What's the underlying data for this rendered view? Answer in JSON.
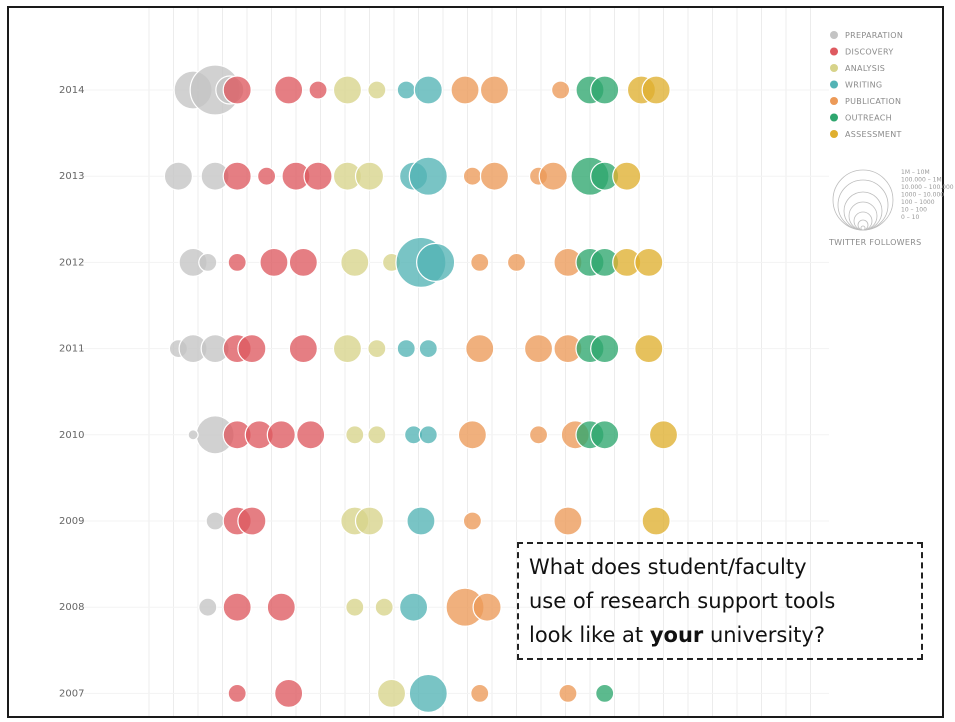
{
  "chart_data": {
    "type": "scatter",
    "title": "",
    "xlabel": "",
    "ylabel": "",
    "y_categories": [
      "2014",
      "2013",
      "2012",
      "2011",
      "2010",
      "2009",
      "2008",
      "2007"
    ],
    "legend": {
      "position": "top-right",
      "entries": [
        {
          "name": "PREPARATION",
          "color": "#c4c4c4"
        },
        {
          "name": "DISCOVERY",
          "color": "#de5a60"
        },
        {
          "name": "ANALYSIS",
          "color": "#d7d38a"
        },
        {
          "name": "WRITING",
          "color": "#53b3b5"
        },
        {
          "name": "PUBLICATION",
          "color": "#ec9a58"
        },
        {
          "name": "OUTREACH",
          "color": "#2ea66e"
        },
        {
          "name": "ASSESSMENT",
          "color": "#dfaf2f"
        }
      ]
    },
    "size_legend": {
      "title": "TWITTER FOLLOWERS",
      "levels": [
        "1M – 10M",
        "100.000 – 1M",
        "10.000 – 100.000",
        "1000 – 10.000",
        "100 – 1000",
        "10 – 100",
        "0 – 10"
      ]
    },
    "series": [
      {
        "name": "PREPARATION",
        "points": [
          {
            "year": 2014,
            "x": 0.06,
            "s": 4
          },
          {
            "year": 2014,
            "x": 0.09,
            "s": 5
          },
          {
            "year": 2014,
            "x": 0.11,
            "s": 3
          },
          {
            "year": 2013,
            "x": 0.04,
            "s": 3
          },
          {
            "year": 2013,
            "x": 0.09,
            "s": 3
          },
          {
            "year": 2012,
            "x": 0.06,
            "s": 3
          },
          {
            "year": 2012,
            "x": 0.08,
            "s": 2
          },
          {
            "year": 2011,
            "x": 0.04,
            "s": 2
          },
          {
            "year": 2011,
            "x": 0.06,
            "s": 3
          },
          {
            "year": 2011,
            "x": 0.09,
            "s": 3
          },
          {
            "year": 2010,
            "x": 0.09,
            "s": 4
          },
          {
            "year": 2010,
            "x": 0.06,
            "s": 1
          },
          {
            "year": 2009,
            "x": 0.09,
            "s": 2
          },
          {
            "year": 2008,
            "x": 0.08,
            "s": 2
          }
        ]
      },
      {
        "name": "DISCOVERY",
        "points": [
          {
            "year": 2014,
            "x": 0.12,
            "s": 3
          },
          {
            "year": 2014,
            "x": 0.19,
            "s": 3
          },
          {
            "year": 2014,
            "x": 0.23,
            "s": 2
          },
          {
            "year": 2013,
            "x": 0.12,
            "s": 3
          },
          {
            "year": 2013,
            "x": 0.16,
            "s": 2
          },
          {
            "year": 2013,
            "x": 0.2,
            "s": 3
          },
          {
            "year": 2013,
            "x": 0.23,
            "s": 3
          },
          {
            "year": 2012,
            "x": 0.12,
            "s": 2
          },
          {
            "year": 2012,
            "x": 0.17,
            "s": 3
          },
          {
            "year": 2012,
            "x": 0.21,
            "s": 3
          },
          {
            "year": 2011,
            "x": 0.12,
            "s": 3
          },
          {
            "year": 2011,
            "x": 0.14,
            "s": 3
          },
          {
            "year": 2011,
            "x": 0.21,
            "s": 3
          },
          {
            "year": 2010,
            "x": 0.12,
            "s": 3
          },
          {
            "year": 2010,
            "x": 0.15,
            "s": 3
          },
          {
            "year": 2010,
            "x": 0.18,
            "s": 3
          },
          {
            "year": 2010,
            "x": 0.22,
            "s": 3
          },
          {
            "year": 2009,
            "x": 0.12,
            "s": 3
          },
          {
            "year": 2009,
            "x": 0.14,
            "s": 3
          },
          {
            "year": 2008,
            "x": 0.12,
            "s": 3
          },
          {
            "year": 2008,
            "x": 0.18,
            "s": 3
          },
          {
            "year": 2007,
            "x": 0.12,
            "s": 2
          },
          {
            "year": 2007,
            "x": 0.19,
            "s": 3
          }
        ]
      },
      {
        "name": "ANALYSIS",
        "points": [
          {
            "year": 2014,
            "x": 0.27,
            "s": 3
          },
          {
            "year": 2014,
            "x": 0.31,
            "s": 2
          },
          {
            "year": 2013,
            "x": 0.27,
            "s": 3
          },
          {
            "year": 2013,
            "x": 0.3,
            "s": 3
          },
          {
            "year": 2012,
            "x": 0.28,
            "s": 3
          },
          {
            "year": 2012,
            "x": 0.33,
            "s": 2
          },
          {
            "year": 2011,
            "x": 0.27,
            "s": 3
          },
          {
            "year": 2011,
            "x": 0.31,
            "s": 2
          },
          {
            "year": 2010,
            "x": 0.28,
            "s": 2
          },
          {
            "year": 2010,
            "x": 0.31,
            "s": 2
          },
          {
            "year": 2009,
            "x": 0.28,
            "s": 3
          },
          {
            "year": 2009,
            "x": 0.3,
            "s": 3
          },
          {
            "year": 2008,
            "x": 0.28,
            "s": 2
          },
          {
            "year": 2008,
            "x": 0.32,
            "s": 2
          },
          {
            "year": 2007,
            "x": 0.33,
            "s": 3
          }
        ]
      },
      {
        "name": "WRITING",
        "points": [
          {
            "year": 2014,
            "x": 0.35,
            "s": 2
          },
          {
            "year": 2014,
            "x": 0.38,
            "s": 3
          },
          {
            "year": 2013,
            "x": 0.36,
            "s": 3
          },
          {
            "year": 2013,
            "x": 0.38,
            "s": 4
          },
          {
            "year": 2012,
            "x": 0.37,
            "s": 5
          },
          {
            "year": 2012,
            "x": 0.39,
            "s": 4
          },
          {
            "year": 2011,
            "x": 0.35,
            "s": 2
          },
          {
            "year": 2011,
            "x": 0.38,
            "s": 2
          },
          {
            "year": 2010,
            "x": 0.36,
            "s": 2
          },
          {
            "year": 2010,
            "x": 0.38,
            "s": 2
          },
          {
            "year": 2009,
            "x": 0.37,
            "s": 3
          },
          {
            "year": 2008,
            "x": 0.36,
            "s": 3
          },
          {
            "year": 2007,
            "x": 0.38,
            "s": 4
          }
        ]
      },
      {
        "name": "PUBLICATION",
        "points": [
          {
            "year": 2014,
            "x": 0.43,
            "s": 3
          },
          {
            "year": 2014,
            "x": 0.47,
            "s": 3
          },
          {
            "year": 2014,
            "x": 0.56,
            "s": 2
          },
          {
            "year": 2013,
            "x": 0.44,
            "s": 2
          },
          {
            "year": 2013,
            "x": 0.47,
            "s": 3
          },
          {
            "year": 2013,
            "x": 0.53,
            "s": 2
          },
          {
            "year": 2013,
            "x": 0.55,
            "s": 3
          },
          {
            "year": 2012,
            "x": 0.45,
            "s": 2
          },
          {
            "year": 2012,
            "x": 0.5,
            "s": 2
          },
          {
            "year": 2012,
            "x": 0.57,
            "s": 3
          },
          {
            "year": 2011,
            "x": 0.45,
            "s": 3
          },
          {
            "year": 2011,
            "x": 0.53,
            "s": 3
          },
          {
            "year": 2011,
            "x": 0.57,
            "s": 3
          },
          {
            "year": 2010,
            "x": 0.44,
            "s": 3
          },
          {
            "year": 2010,
            "x": 0.53,
            "s": 2
          },
          {
            "year": 2010,
            "x": 0.58,
            "s": 3
          },
          {
            "year": 2009,
            "x": 0.44,
            "s": 2
          },
          {
            "year": 2009,
            "x": 0.57,
            "s": 3
          },
          {
            "year": 2008,
            "x": 0.43,
            "s": 4
          },
          {
            "year": 2008,
            "x": 0.46,
            "s": 3
          },
          {
            "year": 2007,
            "x": 0.45,
            "s": 2
          },
          {
            "year": 2007,
            "x": 0.57,
            "s": 2
          }
        ]
      },
      {
        "name": "OUTREACH",
        "points": [
          {
            "year": 2014,
            "x": 0.6,
            "s": 3
          },
          {
            "year": 2014,
            "x": 0.62,
            "s": 3
          },
          {
            "year": 2013,
            "x": 0.6,
            "s": 4
          },
          {
            "year": 2013,
            "x": 0.62,
            "s": 3
          },
          {
            "year": 2012,
            "x": 0.6,
            "s": 3
          },
          {
            "year": 2012,
            "x": 0.62,
            "s": 3
          },
          {
            "year": 2011,
            "x": 0.6,
            "s": 3
          },
          {
            "year": 2011,
            "x": 0.62,
            "s": 3
          },
          {
            "year": 2010,
            "x": 0.6,
            "s": 3
          },
          {
            "year": 2010,
            "x": 0.62,
            "s": 3
          },
          {
            "year": 2007,
            "x": 0.62,
            "s": 2
          }
        ]
      },
      {
        "name": "ASSESSMENT",
        "points": [
          {
            "year": 2014,
            "x": 0.67,
            "s": 3
          },
          {
            "year": 2014,
            "x": 0.69,
            "s": 3
          },
          {
            "year": 2013,
            "x": 0.65,
            "s": 3
          },
          {
            "year": 2012,
            "x": 0.65,
            "s": 3
          },
          {
            "year": 2012,
            "x": 0.68,
            "s": 3
          },
          {
            "year": 2011,
            "x": 0.68,
            "s": 3
          },
          {
            "year": 2010,
            "x": 0.7,
            "s": 3
          },
          {
            "year": 2009,
            "x": 0.69,
            "s": 3
          }
        ]
      }
    ]
  },
  "callout": {
    "line1": "What does student/faculty",
    "line2": "use of research support tools",
    "line3_before": "look like at ",
    "line3_bold": "your",
    "line3_after": " university?"
  }
}
